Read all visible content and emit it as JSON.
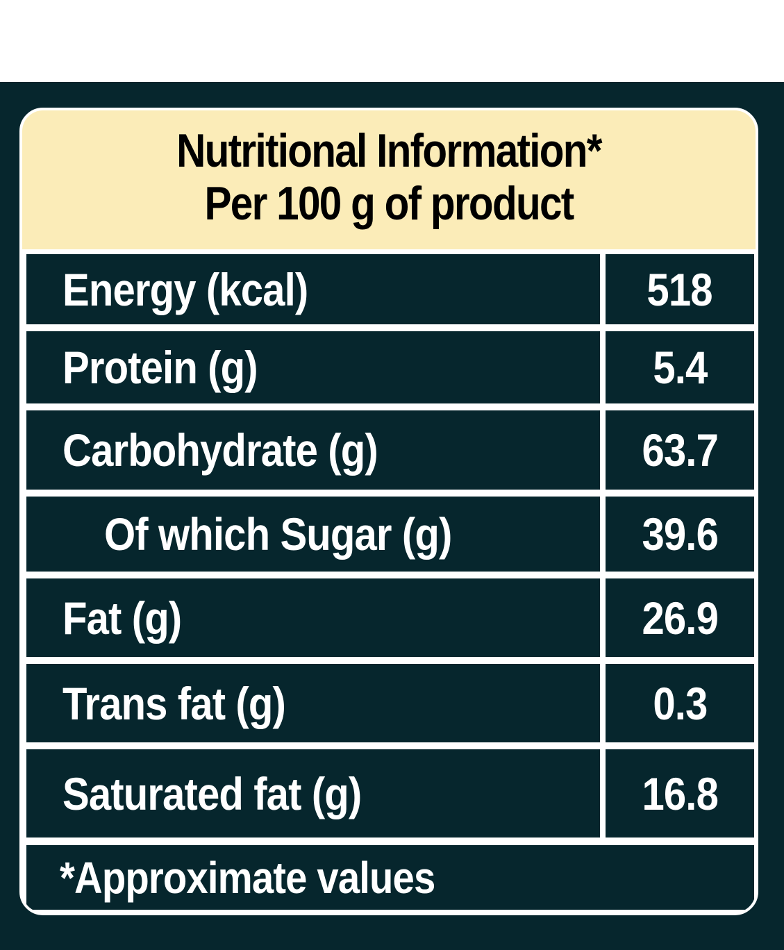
{
  "header": {
    "title": "Nutritional  Information*",
    "subtitle": "Per 100 g of product"
  },
  "rows": [
    {
      "name": "Energy (kcal)",
      "value": "518"
    },
    {
      "name": "Protein (g)",
      "value": "5.4"
    },
    {
      "name": "Carbohydrate (g)",
      "value": "63.7"
    },
    {
      "name": "Of which Sugar (g)",
      "value": "39.6"
    },
    {
      "name": "Fat (g)",
      "value": "26.9"
    },
    {
      "name": "Trans fat (g)",
      "value": "0.3"
    },
    {
      "name": "Saturated fat (g)",
      "value": "16.8"
    }
  ],
  "footer": {
    "note": "*Approximate values"
  },
  "colors": {
    "panel": "#06262d",
    "header_bg": "#fbecb8",
    "text_light": "#ffffff",
    "text_dark": "#000000"
  }
}
